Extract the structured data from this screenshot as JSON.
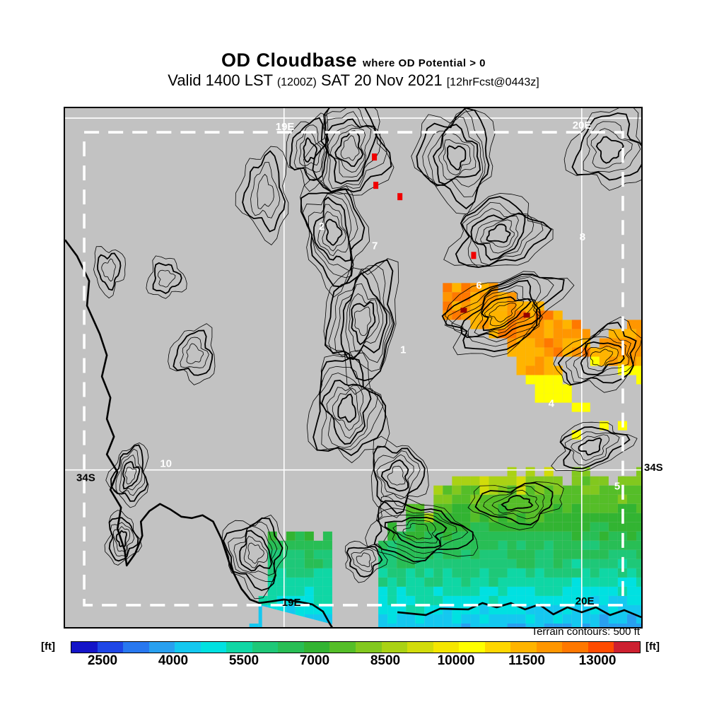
{
  "title": {
    "main": "OD Cloudbase",
    "qualifier": "where OD Potential > 0"
  },
  "subtitle": {
    "valid": "Valid 1400 LST",
    "zulu": "(1200Z)",
    "date": "SAT 20 Nov 2021",
    "fcst": "[12hrFcst@0443z]"
  },
  "map": {
    "grid_labels": {
      "top_west": "19E",
      "top_east": "20E",
      "bottom_west": "19E",
      "bottom_east": "20E",
      "lat_left": "34S",
      "lat_right": "34S"
    },
    "sites": {
      "s1": "1",
      "s2": "2",
      "s4": "4",
      "s5": "5",
      "s6": "6",
      "s7": "7",
      "s8": "8",
      "s10": "10"
    }
  },
  "legend": {
    "note": "Terrain contours: 500 ft",
    "unit_left": "[ft]",
    "unit_right": "[ft]",
    "labels": [
      "2500",
      "4000",
      "5500",
      "7000",
      "8500",
      "10000",
      "11500",
      "13000"
    ],
    "colors": [
      "#1414c8",
      "#1e46e6",
      "#2878f0",
      "#28a0f0",
      "#14c8f0",
      "#00e1e1",
      "#0fd7a5",
      "#1ec878",
      "#28be55",
      "#32b432",
      "#55be28",
      "#82c81e",
      "#aad214",
      "#d2dc0a",
      "#f5e600",
      "#ffff00",
      "#ffd700",
      "#ffb400",
      "#ff9600",
      "#ff7800",
      "#ff4b00",
      "#cd2030"
    ]
  },
  "colors": {
    "land": "#c2c2c2",
    "contour": "#000000",
    "grid_line": "#ffffff",
    "boundary_dash": "#ffffff",
    "red_spot": "#f00000",
    "dark_spot": "#960000"
  }
}
